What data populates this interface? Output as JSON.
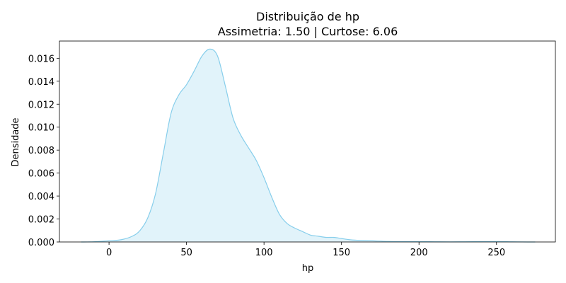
{
  "chart_data": {
    "type": "area",
    "title": "Distribuição de hp",
    "subtitle": "Assimetria: 1.50 | Curtose: 6.06",
    "xlabel": "hp",
    "ylabel": "Densidade",
    "xlim": [
      -32,
      288
    ],
    "ylim": [
      0,
      0.0175
    ],
    "xticks": [
      0,
      50,
      100,
      150,
      200,
      250
    ],
    "xtick_labels": [
      "0",
      "50",
      "100",
      "150",
      "200",
      "250"
    ],
    "yticks": [
      0,
      0.002,
      0.004,
      0.006,
      0.008,
      0.01,
      0.012,
      0.014,
      0.016
    ],
    "ytick_labels": [
      "0.000",
      "0.002",
      "0.004",
      "0.006",
      "0.008",
      "0.010",
      "0.012",
      "0.014",
      "0.016"
    ],
    "grid": false,
    "line_color": "#87ceeb",
    "fill_color": "#87ceeb",
    "series": [
      {
        "x": [
          -18,
          -10,
          0,
          8,
          15,
          20,
          25,
          30,
          35,
          40,
          45,
          50,
          55,
          60,
          65,
          70,
          75,
          80,
          85,
          90,
          95,
          100,
          105,
          110,
          115,
          120,
          125,
          130,
          135,
          140,
          145,
          150,
          155,
          160,
          170,
          180,
          190,
          200,
          210,
          220,
          230,
          240,
          250,
          260,
          270,
          275
        ],
        "y": [
          0.0,
          2e-05,
          0.0001,
          0.0002,
          0.0005,
          0.001,
          0.0021,
          0.0042,
          0.0077,
          0.0112,
          0.0128,
          0.0137,
          0.0149,
          0.0162,
          0.0168,
          0.0162,
          0.0136,
          0.0108,
          0.0093,
          0.0082,
          0.0071,
          0.0056,
          0.0039,
          0.0024,
          0.0016,
          0.0012,
          0.0009,
          0.0006,
          0.0005,
          0.0004,
          0.0004,
          0.0003,
          0.0002,
          0.00015,
          0.0001,
          5e-05,
          3e-05,
          3e-05,
          2e-05,
          1e-05,
          2e-05,
          3e-05,
          4e-05,
          2e-05,
          0.0,
          0.0
        ]
      }
    ]
  }
}
